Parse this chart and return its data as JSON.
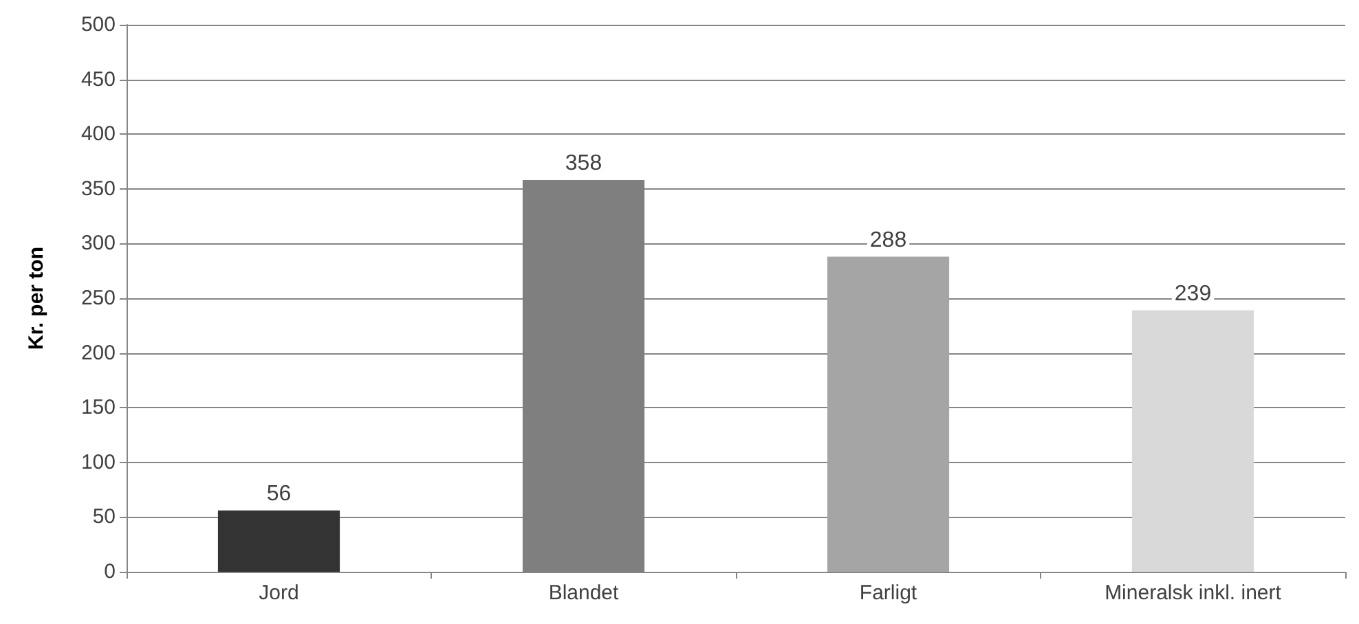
{
  "chart_data": {
    "type": "bar",
    "ylabel": "Kr. per ton",
    "categories": [
      "Jord",
      "Blandet",
      "Farligt",
      "Mineralsk inkl. inert"
    ],
    "values": [
      56,
      358,
      288,
      239
    ],
    "colors": [
      "#333333",
      "#7f7f7f",
      "#a5a5a5",
      "#d9d9d9"
    ],
    "ylim": [
      0,
      500
    ],
    "yticks": [
      0,
      50,
      100,
      150,
      200,
      250,
      300,
      350,
      400,
      450,
      500
    ],
    "grid": "y",
    "data_labels": true
  }
}
